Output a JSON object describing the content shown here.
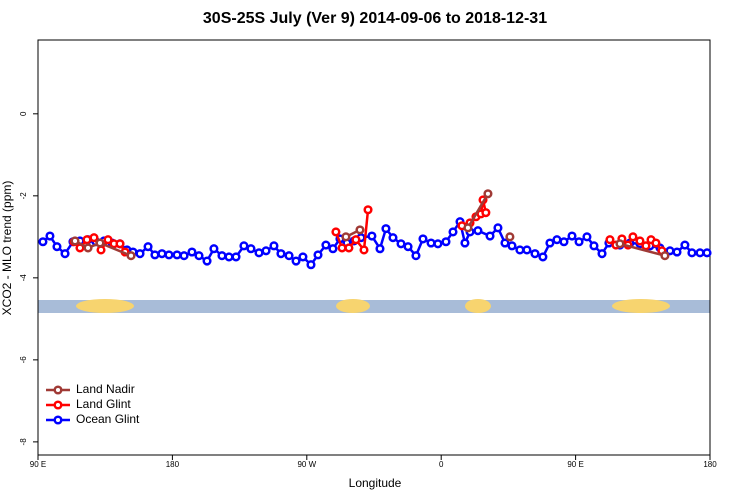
{
  "chart_data": {
    "type": "line",
    "title": "30S-25S July (Ver 9)   2014-09-06 to 2018-12-31",
    "x_label": "Longitude",
    "y_label": "XCO2 - MLO trend (ppm)",
    "xlim": [
      90,
      540
    ],
    "xticks": [
      {
        "value": 90,
        "label": "90 E"
      },
      180,
      {
        "value": 270,
        "label": "90 W"
      },
      {
        "value": 360,
        "label": "0"
      },
      {
        "value": 450,
        "label": "90 E"
      },
      {
        "value": 540,
        "label": "180"
      }
    ],
    "ylim": [
      -8.32,
      1.8
    ],
    "yticks": [
      -8,
      -6,
      -4,
      -2,
      0
    ],
    "legend": "bottom-left",
    "series": [
      {
        "name": "Land Nadir",
        "color": "#a03a35",
        "x": [
          114.8,
          123.5,
          131.5,
          152.3,
          null,
          296.2,
          305.6,
          null,
          377.9,
          391.3,
          null,
          406.0,
          null,
          479.7,
          509.8
        ],
        "values": [
          -3.1,
          -3.27,
          -3.15,
          -3.46,
          null,
          -3.0,
          -2.83,
          null,
          -2.78,
          -1.95,
          null,
          -3.0,
          null,
          -3.17,
          -3.46
        ]
      },
      {
        "name": "Land Glint",
        "color": "#ff0000",
        "x": [
          114.1,
          118.1,
          122.8,
          127.5,
          132.2,
          136.9,
          140.9,
          144.9,
          148.3,
          null,
          289.5,
          293.6,
          298.2,
          302.9,
          308.3,
          311.0,
          null,
          373.9,
          379.3,
          383.3,
          386.6,
          388.0,
          389.9,
          null,
          473.0,
          477.0,
          481.0,
          485.1,
          488.4,
          493.1,
          497.1,
          500.5,
          503.8,
          507.8
        ],
        "values": [
          -3.12,
          -3.27,
          -3.07,
          -3.02,
          -3.32,
          -3.07,
          -3.17,
          -3.17,
          -3.37,
          null,
          -2.88,
          -3.27,
          -3.27,
          -3.07,
          -3.32,
          -2.34,
          null,
          -2.73,
          -2.66,
          -2.51,
          -2.44,
          -2.1,
          -2.41,
          null,
          -3.07,
          -3.2,
          -3.05,
          -3.2,
          -3.0,
          -3.1,
          -3.22,
          -3.07,
          -3.15,
          -3.34
        ]
      },
      {
        "name": "Ocean Glint",
        "color": "#0000ff",
        "x": [
          93.3,
          98.0,
          102.7,
          108.1,
          113.4,
          118.1,
          123.5,
          128.8,
          134.2,
          139.6,
          144.9,
          149.6,
          153.6,
          158.3,
          163.7,
          168.3,
          173.0,
          177.7,
          183.1,
          187.8,
          193.1,
          197.8,
          203.2,
          207.8,
          213.2,
          217.9,
          222.6,
          227.9,
          232.6,
          238.0,
          242.7,
          248.0,
          252.7,
          258.1,
          262.8,
          267.4,
          272.8,
          277.5,
          282.8,
          287.5,
          292.2,
          296.9,
          301.6,
          306.3,
          313.6,
          319.0,
          323.0,
          327.7,
          333.1,
          337.8,
          343.1,
          347.8,
          353.2,
          357.8,
          363.2,
          367.9,
          372.6,
          375.9,
          379.3,
          384.6,
          392.7,
          398.0,
          402.7,
          407.4,
          412.7,
          417.4,
          422.8,
          428.1,
          432.8,
          437.5,
          442.2,
          447.6,
          452.3,
          457.6,
          462.3,
          467.7,
          472.3,
          479.7,
          486.4,
          493.1,
          499.8,
          506.5,
          513.2,
          517.9,
          523.2,
          527.9,
          533.3,
          538.0
        ],
        "values": [
          -3.12,
          -2.98,
          -3.24,
          -3.41,
          -3.12,
          -3.1,
          -3.07,
          -3.12,
          -3.1,
          -3.15,
          -3.17,
          -3.32,
          -3.37,
          -3.41,
          -3.24,
          -3.44,
          -3.41,
          -3.44,
          -3.44,
          -3.46,
          -3.37,
          -3.46,
          -3.59,
          -3.29,
          -3.46,
          -3.49,
          -3.49,
          -3.22,
          -3.29,
          -3.39,
          -3.34,
          -3.22,
          -3.41,
          -3.46,
          -3.59,
          -3.49,
          -3.68,
          -3.44,
          -3.2,
          -3.29,
          -3.05,
          -3.15,
          -3.1,
          -3.02,
          -2.98,
          -3.29,
          -2.8,
          -3.02,
          -3.17,
          -3.24,
          -3.46,
          -3.05,
          -3.15,
          -3.17,
          -3.12,
          -2.88,
          -2.63,
          -3.15,
          -2.88,
          -2.85,
          -2.98,
          -2.78,
          -3.15,
          -3.22,
          -3.32,
          -3.32,
          -3.41,
          -3.49,
          -3.15,
          -3.07,
          -3.12,
          -2.98,
          -3.12,
          -3.0,
          -3.22,
          -3.41,
          -3.15,
          -3.2,
          -3.15,
          -3.17,
          -3.22,
          -3.27,
          -3.34,
          -3.37,
          -3.2,
          -3.39,
          -3.39,
          -3.39
        ]
      }
    ]
  }
}
